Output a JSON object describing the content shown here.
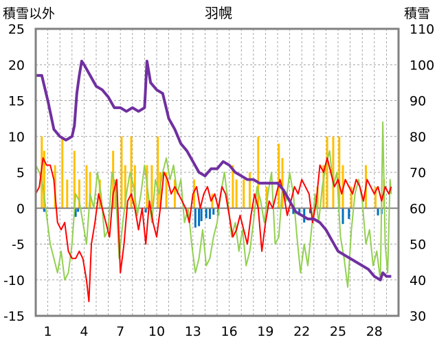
{
  "chart_data": {
    "type": "line",
    "title": "羽幌",
    "ylabel_left": "積雪以外",
    "ylabel_right": "積雪",
    "left_axis": {
      "range": [
        -15,
        25
      ],
      "ticks": [
        25,
        20,
        15,
        10,
        5,
        0,
        -5,
        -10,
        -15
      ]
    },
    "right_axis": {
      "range": [
        30,
        110
      ],
      "ticks": [
        110,
        100,
        90,
        80,
        70,
        60,
        50,
        40,
        30
      ]
    },
    "x_axis": {
      "range": [
        0,
        30
      ],
      "tick_labels": [
        "1",
        "4",
        "7",
        "10",
        "13",
        "16",
        "19",
        "22",
        "25",
        "28"
      ],
      "tick_positions": [
        1,
        4,
        7,
        10,
        13,
        16,
        19,
        22,
        25,
        28
      ]
    },
    "grid": true,
    "colors": {
      "snow_depth": "#7030a0",
      "temperature": "#ff0000",
      "green_series": "#92d050",
      "orange_bars": "#ffc000",
      "blue_bars": "#0070c0",
      "axis_frame": "#808080",
      "zero_line": "#808080"
    },
    "series": [
      {
        "key": "snow",
        "axis": "right",
        "points": [
          [
            0,
            97
          ],
          [
            0.5,
            97
          ],
          [
            1,
            90
          ],
          [
            1.5,
            82
          ],
          [
            2,
            80
          ],
          [
            2.5,
            79
          ],
          [
            3,
            80
          ],
          [
            3.2,
            83
          ],
          [
            3.4,
            92
          ],
          [
            3.6,
            97
          ],
          [
            3.8,
            101
          ],
          [
            4,
            100
          ],
          [
            4.5,
            97
          ],
          [
            5,
            94
          ],
          [
            5.5,
            93
          ],
          [
            6,
            91
          ],
          [
            6.5,
            88
          ],
          [
            7,
            88
          ],
          [
            7.5,
            87
          ],
          [
            8,
            88
          ],
          [
            8.5,
            87
          ],
          [
            9,
            88
          ],
          [
            9.2,
            101
          ],
          [
            9.5,
            95
          ],
          [
            10,
            93
          ],
          [
            10.5,
            92
          ],
          [
            11,
            85
          ],
          [
            11.5,
            82
          ],
          [
            12,
            78
          ],
          [
            12.5,
            76
          ],
          [
            13,
            73
          ],
          [
            13.5,
            70
          ],
          [
            14,
            69
          ],
          [
            14.5,
            71
          ],
          [
            15,
            71
          ],
          [
            15.5,
            73
          ],
          [
            16,
            72
          ],
          [
            16.5,
            70
          ],
          [
            17,
            69
          ],
          [
            17.5,
            68
          ],
          [
            18,
            68
          ],
          [
            18.5,
            67
          ],
          [
            19,
            67
          ],
          [
            19.5,
            67
          ],
          [
            20,
            67
          ],
          [
            20.5,
            65
          ],
          [
            21,
            62
          ],
          [
            21.5,
            59
          ],
          [
            22,
            58
          ],
          [
            22.5,
            57
          ],
          [
            23,
            57
          ],
          [
            23.5,
            56
          ],
          [
            24,
            54
          ],
          [
            24.5,
            51
          ],
          [
            25,
            48
          ],
          [
            25.5,
            47
          ],
          [
            26,
            46
          ],
          [
            26.5,
            45
          ],
          [
            27,
            44
          ],
          [
            27.5,
            43
          ],
          [
            28,
            41
          ],
          [
            28.5,
            40
          ],
          [
            28.7,
            42
          ],
          [
            29,
            41
          ],
          [
            29.4,
            41
          ]
        ]
      },
      {
        "key": "temperature",
        "axis": "left",
        "points": [
          [
            0,
            2
          ],
          [
            0.3,
            3
          ],
          [
            0.6,
            7
          ],
          [
            0.9,
            6
          ],
          [
            1.2,
            6
          ],
          [
            1.5,
            4
          ],
          [
            1.8,
            -2
          ],
          [
            2.1,
            -3
          ],
          [
            2.4,
            -2
          ],
          [
            2.7,
            -6
          ],
          [
            3,
            -7
          ],
          [
            3.3,
            -7
          ],
          [
            3.6,
            -6
          ],
          [
            3.9,
            -7
          ],
          [
            4.2,
            -10
          ],
          [
            4.4,
            -13
          ],
          [
            4.6,
            -5
          ],
          [
            4.9,
            -2
          ],
          [
            5.2,
            2
          ],
          [
            5.5,
            0
          ],
          [
            5.8,
            -2
          ],
          [
            6.1,
            -4
          ],
          [
            6.4,
            2
          ],
          [
            6.7,
            4
          ],
          [
            7,
            -9
          ],
          [
            7.3,
            -5
          ],
          [
            7.6,
            1
          ],
          [
            7.9,
            2
          ],
          [
            8.2,
            0
          ],
          [
            8.5,
            -3
          ],
          [
            8.8,
            0
          ],
          [
            9.1,
            -5
          ],
          [
            9.4,
            1
          ],
          [
            9.7,
            -2
          ],
          [
            10,
            -4
          ],
          [
            10.3,
            0
          ],
          [
            10.6,
            5
          ],
          [
            10.9,
            4
          ],
          [
            11.2,
            2
          ],
          [
            11.5,
            3
          ],
          [
            11.8,
            2
          ],
          [
            12.1,
            1
          ],
          [
            12.4,
            0
          ],
          [
            12.7,
            -2
          ],
          [
            13,
            2
          ],
          [
            13.3,
            3
          ],
          [
            13.6,
            0
          ],
          [
            13.9,
            2
          ],
          [
            14.2,
            3
          ],
          [
            14.5,
            1
          ],
          [
            14.8,
            2
          ],
          [
            15.1,
            0
          ],
          [
            15.4,
            3
          ],
          [
            15.7,
            2
          ],
          [
            16,
            -1
          ],
          [
            16.3,
            -4
          ],
          [
            16.6,
            -3
          ],
          [
            16.9,
            -1
          ],
          [
            17.2,
            -3
          ],
          [
            17.5,
            -5
          ],
          [
            17.8,
            -1
          ],
          [
            18.1,
            2
          ],
          [
            18.4,
            0
          ],
          [
            18.7,
            -6
          ],
          [
            19,
            -2
          ],
          [
            19.3,
            1
          ],
          [
            19.6,
            0
          ],
          [
            19.9,
            2
          ],
          [
            20.2,
            4
          ],
          [
            20.5,
            2
          ],
          [
            20.8,
            -1
          ],
          [
            21.1,
            1
          ],
          [
            21.4,
            3
          ],
          [
            21.7,
            2
          ],
          [
            22,
            4
          ],
          [
            22.3,
            3
          ],
          [
            22.6,
            2
          ],
          [
            22.9,
            -2
          ],
          [
            23.2,
            1
          ],
          [
            23.5,
            6
          ],
          [
            23.8,
            5
          ],
          [
            24.1,
            7
          ],
          [
            24.4,
            5
          ],
          [
            24.7,
            3
          ],
          [
            25,
            4
          ],
          [
            25.3,
            2
          ],
          [
            25.6,
            4
          ],
          [
            25.9,
            3
          ],
          [
            26.2,
            2
          ],
          [
            26.5,
            4
          ],
          [
            26.8,
            3
          ],
          [
            27.1,
            1
          ],
          [
            27.4,
            4
          ],
          [
            27.7,
            3
          ],
          [
            28,
            2
          ],
          [
            28.3,
            3
          ],
          [
            28.6,
            1
          ],
          [
            28.9,
            3
          ],
          [
            29.2,
            2
          ],
          [
            29.4,
            3
          ]
        ]
      },
      {
        "key": "green",
        "axis": "left",
        "points": [
          [
            0,
            6
          ],
          [
            0.3,
            5
          ],
          [
            0.6,
            3
          ],
          [
            0.9,
            -1
          ],
          [
            1.2,
            -5
          ],
          [
            1.5,
            -7
          ],
          [
            1.8,
            -9
          ],
          [
            2.1,
            -6
          ],
          [
            2.4,
            -10
          ],
          [
            2.7,
            -9
          ],
          [
            3,
            -5
          ],
          [
            3.3,
            2
          ],
          [
            3.6,
            1
          ],
          [
            3.9,
            -2
          ],
          [
            4.2,
            -5
          ],
          [
            4.5,
            2
          ],
          [
            4.8,
            0
          ],
          [
            5.1,
            5
          ],
          [
            5.4,
            2
          ],
          [
            5.7,
            -4
          ],
          [
            6,
            -3
          ],
          [
            6.3,
            5
          ],
          [
            6.6,
            3
          ],
          [
            6.9,
            -7
          ],
          [
            7.2,
            -2
          ],
          [
            7.5,
            2
          ],
          [
            7.8,
            5
          ],
          [
            8.1,
            3
          ],
          [
            8.4,
            -1
          ],
          [
            8.7,
            2
          ],
          [
            9,
            6
          ],
          [
            9.3,
            2
          ],
          [
            9.6,
            -2
          ],
          [
            9.9,
            4
          ],
          [
            10.2,
            2
          ],
          [
            10.5,
            5
          ],
          [
            10.8,
            7
          ],
          [
            11.1,
            4
          ],
          [
            11.4,
            6
          ],
          [
            11.7,
            2
          ],
          [
            12,
            4
          ],
          [
            12.3,
            -2
          ],
          [
            12.6,
            0
          ],
          [
            12.9,
            -5
          ],
          [
            13.2,
            -9
          ],
          [
            13.5,
            -7
          ],
          [
            13.8,
            -3
          ],
          [
            14.1,
            -8
          ],
          [
            14.4,
            -7
          ],
          [
            14.7,
            -4
          ],
          [
            15,
            -2
          ],
          [
            15.3,
            2
          ],
          [
            15.6,
            5
          ],
          [
            15.9,
            1
          ],
          [
            16.2,
            -4
          ],
          [
            16.5,
            -2
          ],
          [
            16.8,
            -6
          ],
          [
            17.1,
            -3
          ],
          [
            17.4,
            -8
          ],
          [
            17.7,
            -6
          ],
          [
            18,
            -2
          ],
          [
            18.3,
            3
          ],
          [
            18.6,
            1
          ],
          [
            18.9,
            -2
          ],
          [
            19.2,
            2
          ],
          [
            19.5,
            5
          ],
          [
            19.8,
            -5
          ],
          [
            20.1,
            -4
          ],
          [
            20.4,
            3
          ],
          [
            20.7,
            1
          ],
          [
            21,
            5
          ],
          [
            21.3,
            2
          ],
          [
            21.6,
            -4
          ],
          [
            21.9,
            -9
          ],
          [
            22.2,
            -5
          ],
          [
            22.5,
            -8
          ],
          [
            22.8,
            -3
          ],
          [
            23.1,
            2
          ],
          [
            23.4,
            -2
          ],
          [
            23.7,
            3
          ],
          [
            24,
            6
          ],
          [
            24.3,
            8
          ],
          [
            24.6,
            3
          ],
          [
            24.9,
            5
          ],
          [
            25.2,
            -4
          ],
          [
            25.5,
            -7
          ],
          [
            25.8,
            -11
          ],
          [
            26.1,
            -3
          ],
          [
            26.4,
            2
          ],
          [
            26.7,
            4
          ],
          [
            27,
            1
          ],
          [
            27.3,
            -5
          ],
          [
            27.6,
            -3
          ],
          [
            27.9,
            -8
          ],
          [
            28.2,
            -6
          ],
          [
            28.5,
            -10
          ],
          [
            28.7,
            12
          ],
          [
            28.9,
            -5
          ],
          [
            29.1,
            -9
          ],
          [
            29.3,
            4
          ],
          [
            29.4,
            2
          ]
        ]
      }
    ],
    "bars": {
      "axis": "left",
      "orange": [
        [
          0.5,
          10
        ],
        [
          0.7,
          8
        ],
        [
          1.6,
          6
        ],
        [
          2.2,
          10
        ],
        [
          2.6,
          4
        ],
        [
          3.2,
          8
        ],
        [
          3.6,
          4
        ],
        [
          4.2,
          6
        ],
        [
          4.5,
          5
        ],
        [
          5.3,
          4
        ],
        [
          6.4,
          8
        ],
        [
          6.6,
          4
        ],
        [
          7.1,
          10
        ],
        [
          7.4,
          6
        ],
        [
          7.9,
          10
        ],
        [
          8.2,
          6
        ],
        [
          9.2,
          6
        ],
        [
          9.6,
          6
        ],
        [
          10.1,
          10
        ],
        [
          10.3,
          5
        ],
        [
          10.8,
          5
        ],
        [
          11.5,
          4
        ],
        [
          13.1,
          4
        ],
        [
          14.6,
          2
        ],
        [
          16.3,
          6
        ],
        [
          16.6,
          4
        ],
        [
          17.2,
          4
        ],
        [
          17.7,
          5
        ],
        [
          18.4,
          10
        ],
        [
          19.1,
          3
        ],
        [
          20.1,
          9
        ],
        [
          20.4,
          7
        ],
        [
          23.3,
          3
        ],
        [
          23.8,
          6
        ],
        [
          24.1,
          10
        ],
        [
          24.6,
          10
        ],
        [
          25.1,
          10
        ],
        [
          25.4,
          6
        ],
        [
          26.1,
          3
        ],
        [
          27.3,
          6
        ],
        [
          28.1,
          3
        ],
        [
          28.8,
          4
        ]
      ],
      "blue": [
        [
          0.7,
          -0.5
        ],
        [
          3.3,
          -1.2
        ],
        [
          3.5,
          -0.5
        ],
        [
          9.1,
          -0.6
        ],
        [
          13.2,
          -2.7
        ],
        [
          13.5,
          -2.5
        ],
        [
          13.7,
          -1.8
        ],
        [
          14.1,
          -1.4
        ],
        [
          14.4,
          -1.5
        ],
        [
          14.7,
          -0.9
        ],
        [
          15.1,
          -1.0
        ],
        [
          21.3,
          -0.8
        ],
        [
          21.8,
          -1.0
        ],
        [
          22.2,
          -2.0
        ],
        [
          22.7,
          -0.7
        ],
        [
          25.4,
          -2.2
        ],
        [
          25.9,
          -1.5
        ],
        [
          28.3,
          -1.0
        ],
        [
          28.6,
          -0.8
        ]
      ]
    }
  }
}
